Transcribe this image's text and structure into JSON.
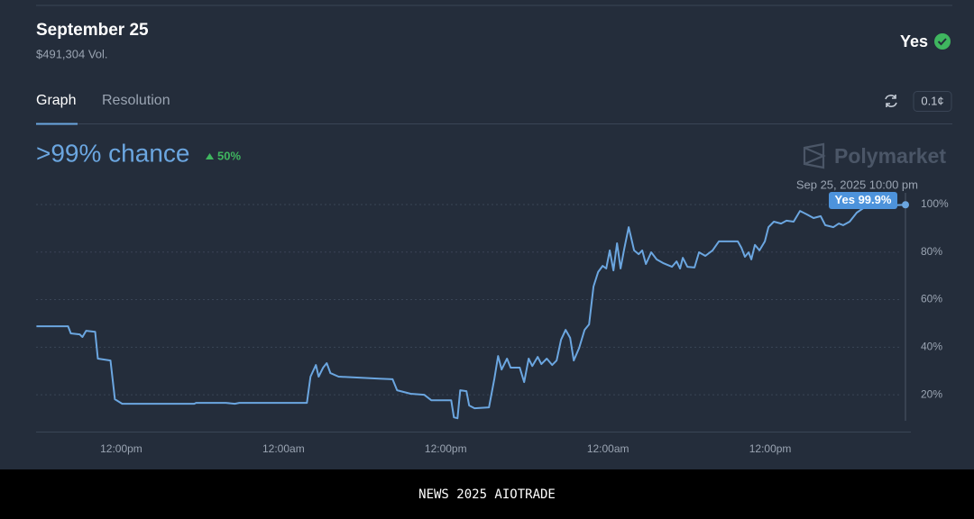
{
  "header": {
    "title": "September 25",
    "volume": "$491,304 Vol.",
    "outcome": "Yes"
  },
  "tabs": [
    "Graph",
    "Resolution"
  ],
  "price_unit_button": "0.1¢",
  "chance": ">99% chance",
  "change": "50%",
  "brand": "Polymarket",
  "chart_data": {
    "type": "line",
    "x": [
      5.73,
      8.07,
      8.27,
      8.93,
      9.13,
      9.4,
      10.07,
      10.27,
      11.2,
      11.53,
      12.07,
      17.4,
      17.53,
      19.73,
      20.4,
      20.73,
      25.73,
      26.0,
      26.4,
      26.6,
      26.93,
      27.2,
      27.47,
      28.07,
      31.07,
      32.07,
      32.4,
      33.4,
      34.4,
      34.93,
      36.4,
      36.6,
      36.87,
      37.07,
      37.53,
      37.73,
      38.13,
      39.2,
      39.6,
      39.87,
      40.13,
      40.53,
      40.8,
      41.47,
      41.8,
      42.13,
      42.4,
      42.8,
      43.07,
      43.47,
      43.87,
      44.2,
      44.53,
      44.87,
      45.2,
      45.47,
      45.87,
      46.27,
      46.6,
      46.93,
      47.27,
      47.6,
      47.87,
      48.13,
      48.4,
      48.67,
      48.93,
      49.2,
      49.53,
      49.93,
      50.27,
      50.53,
      50.8,
      51.2,
      51.6,
      52.07,
      52.73,
      53.07,
      53.33,
      53.53,
      53.87,
      54.4,
      54.73,
      55.2,
      55.73,
      56.2,
      57.6,
      57.87,
      58.13,
      58.4,
      58.6,
      58.87,
      59.2,
      59.6,
      59.87,
      60.27,
      60.8,
      61.2,
      61.73,
      62.2,
      62.73,
      63.2,
      63.73,
      64.07,
      64.67,
      65.07,
      65.4,
      65.87,
      66.4,
      67.07,
      70
    ],
    "series": [
      {
        "name": "Yes",
        "color": "#6ba6e0",
        "values": [
          48.8,
          48.8,
          45.8,
          45.4,
          44.3,
          46.9,
          46.5,
          35.2,
          34.4,
          18.1,
          16.2,
          16.2,
          16.6,
          16.6,
          16.2,
          16.6,
          16.6,
          27.6,
          32.5,
          27.6,
          31.4,
          33.3,
          29.1,
          27.6,
          26.8,
          26.5,
          21.9,
          20.4,
          20.0,
          17.7,
          17.7,
          10.5,
          10.1,
          21.9,
          21.5,
          15.5,
          14.3,
          14.7,
          26.8,
          36.3,
          30.6,
          35.2,
          31.4,
          31.4,
          25.3,
          35.2,
          32.1,
          35.9,
          32.9,
          35.2,
          32.5,
          34.4,
          43.1,
          47.3,
          43.9,
          34.4,
          39.7,
          47.3,
          49.6,
          65.5,
          71.6,
          74.2,
          73.1,
          80.7,
          72.3,
          83.7,
          73.1,
          81.4,
          90.5,
          80.7,
          79.1,
          80.7,
          75.0,
          79.9,
          76.9,
          75.4,
          73.8,
          76.1,
          73.1,
          77.6,
          73.8,
          73.5,
          79.9,
          78.4,
          80.7,
          84.5,
          84.5,
          81.8,
          78.0,
          79.9,
          76.9,
          83.0,
          80.7,
          84.5,
          90.5,
          92.8,
          92.0,
          93.2,
          92.8,
          97.3,
          95.8,
          94.3,
          95.1,
          91.3,
          90.5,
          92.0,
          91.3,
          92.8,
          96.6,
          99.2,
          99.9
        ]
      }
    ],
    "xlim": [
      5.7,
      70.4
    ],
    "xticks": [
      {
        "value": 12,
        "label": "12:00pm"
      },
      {
        "value": 24,
        "label": "12:00am"
      },
      {
        "value": 36,
        "label": "12:00pm"
      },
      {
        "value": 48,
        "label": "12:00am"
      },
      {
        "value": 60,
        "label": "12:00pm"
      }
    ],
    "ylim": [
      4.5,
      110
    ],
    "yticks": [
      {
        "value": 20,
        "label": "20%"
      },
      {
        "value": 40,
        "label": "40%"
      },
      {
        "value": 60,
        "label": "60%"
      },
      {
        "value": 80,
        "label": "80%"
      },
      {
        "value": 100,
        "label": "100%"
      }
    ],
    "grid": true,
    "hover_date": "Sep 25, 2025 10:00 pm",
    "tooltip_value": "99.9%"
  },
  "footer": "NEWS 2025 AIOTRADE"
}
